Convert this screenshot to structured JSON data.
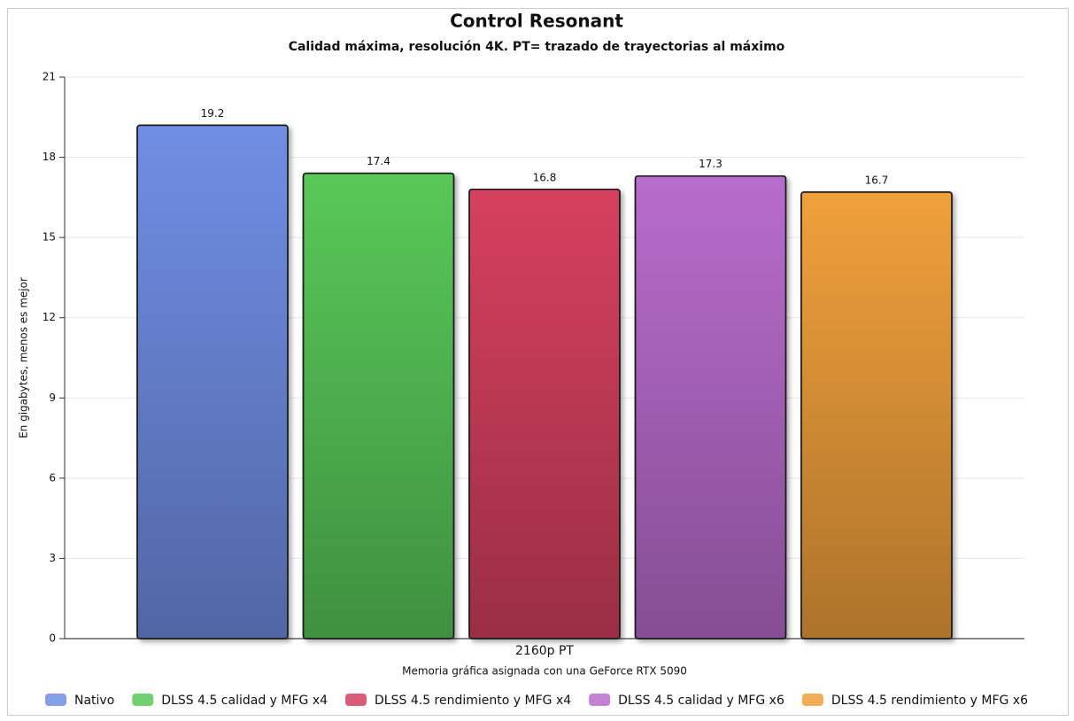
{
  "chart_data": {
    "type": "bar",
    "title": "Control Resonant",
    "subtitle": "Calidad máxima, resolución 4K. PT= trazado de trayectorias al máximo",
    "y_label": "En gigabytes, menos es mejor",
    "x_label": "Memoria gráfica asignada con una GeForce RTX 5090",
    "categories": [
      "2160p PT"
    ],
    "series": [
      {
        "name": "Nativo",
        "color": "#6f8ee4",
        "values": [
          19.2
        ]
      },
      {
        "name": "DLSS 4.5 calidad y MFG x4",
        "color": "#58c858",
        "values": [
          17.4
        ]
      },
      {
        "name": "DLSS 4.5 rendimiento y MFG x4",
        "color": "#d6405f",
        "values": [
          16.8
        ]
      },
      {
        "name": "DLSS 4.5 calidad y MFG x6",
        "color": "#b86ccc",
        "values": [
          17.3
        ]
      },
      {
        "name": "DLSS 4.5 rendimiento y MFG x6",
        "color": "#f0a03a",
        "values": [
          16.7
        ]
      }
    ],
    "ylim": [
      0,
      21
    ],
    "yticks": [
      0,
      3,
      6,
      9,
      12,
      15,
      18,
      21
    ],
    "grid": true,
    "legend": "bottom"
  }
}
